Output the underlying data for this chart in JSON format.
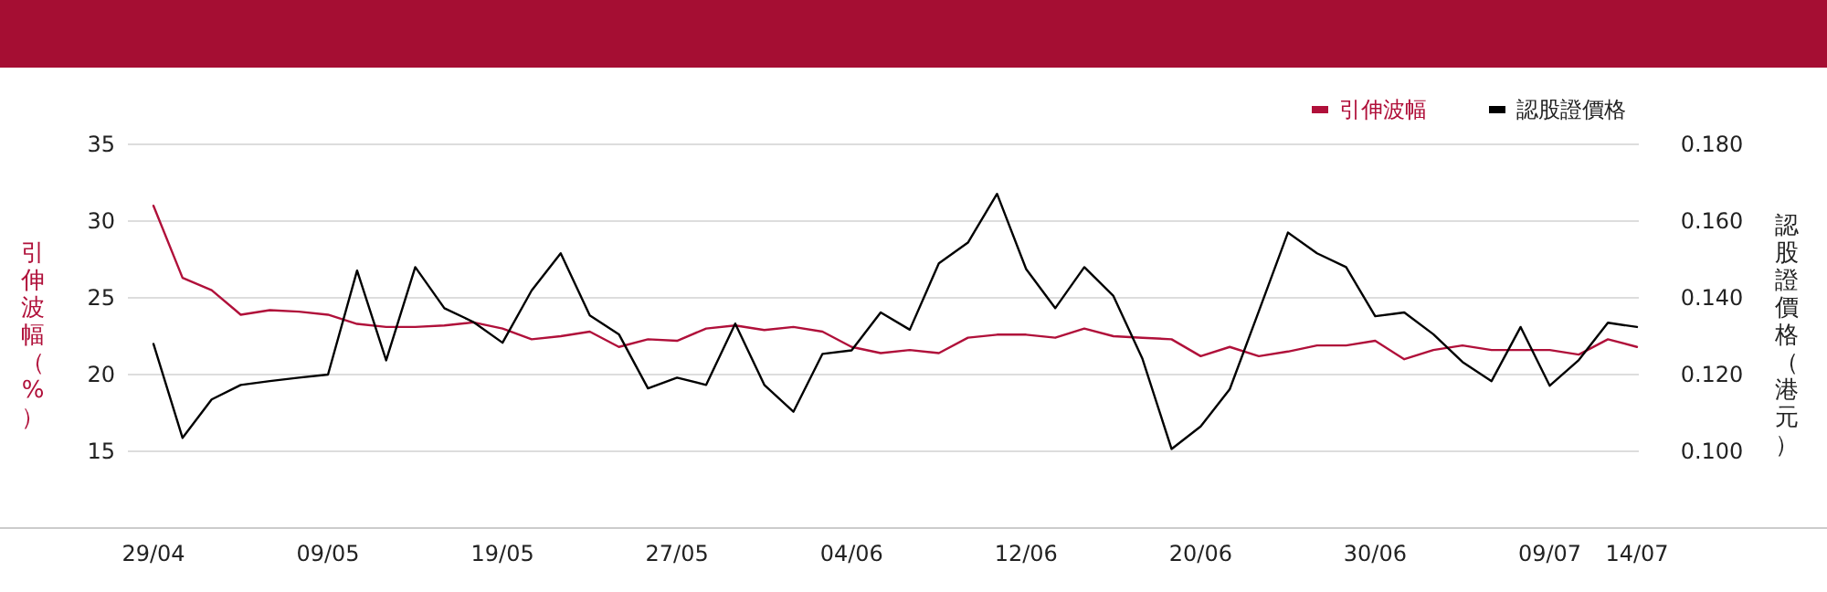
{
  "chart_data": {
    "type": "line",
    "ylabel": "引伸波幅（%）",
    "y2label": "認股證價格（港元）",
    "categories": [
      "29/04",
      null,
      null,
      null,
      null,
      null,
      "09/05",
      null,
      null,
      null,
      null,
      null,
      "19/05",
      null,
      null,
      null,
      null,
      null,
      "27/05",
      null,
      null,
      null,
      null,
      null,
      "04/06",
      null,
      null,
      null,
      null,
      null,
      "12/06",
      null,
      null,
      null,
      null,
      null,
      "20/06",
      null,
      null,
      null,
      null,
      null,
      "30/06",
      null,
      null,
      null,
      null,
      null,
      "09/07",
      null,
      null,
      "14/07"
    ],
    "series": [
      {
        "name": "引伸波幅",
        "color": "#b0103a",
        "values": [
          31.0,
          26.3,
          25.5,
          23.9,
          24.2,
          24.1,
          23.9,
          23.3,
          23.1,
          23.1,
          23.2,
          23.4,
          23.0,
          22.3,
          22.5,
          22.8,
          21.8,
          22.3,
          22.2,
          23.0,
          23.2,
          22.9,
          23.1,
          22.8,
          21.8,
          21.4,
          21.6,
          21.4,
          22.4,
          22.6,
          22.6,
          22.4,
          23.0,
          22.5,
          22.4,
          22.3,
          21.2,
          21.8,
          21.2,
          21.5,
          21.9,
          21.9,
          22.2,
          21.0,
          21.6,
          21.9,
          21.6,
          21.6,
          21.6,
          21.3,
          22.3,
          21.8
        ]
      },
      {
        "name": "認股證價格",
        "color": "#000000",
        "axis": "y2",
        "values": [
          0.128,
          0.1035,
          0.1135,
          0.1173,
          0.1183,
          0.1192,
          0.12,
          0.1471,
          0.1237,
          0.148,
          0.1373,
          0.1337,
          0.1283,
          0.1419,
          0.1516,
          0.1354,
          0.1305,
          0.1164,
          0.1192,
          0.1173,
          0.1333,
          0.1173,
          0.1103,
          0.1254,
          0.1263,
          0.1362,
          0.1317,
          0.149,
          0.1544,
          0.1671,
          0.1475,
          0.1373,
          0.148,
          0.1405,
          0.1241,
          0.1006,
          0.1065,
          0.1162,
          0.1365,
          0.157,
          0.1516,
          0.148,
          0.1352,
          0.1362,
          0.1305,
          0.1233,
          0.1183,
          0.1324,
          0.1171,
          0.1238,
          0.1335,
          0.1324
        ]
      }
    ],
    "ylim": [
      10,
      35
    ],
    "yticks": [
      15,
      20,
      25,
      30,
      35
    ],
    "y2lim": [
      0.08,
      0.18
    ],
    "y2ticks": [
      {
        "value": 0.1,
        "label": "0.100"
      },
      {
        "value": 0.12,
        "label": "0.120"
      },
      {
        "value": 0.14,
        "label": "0.140"
      },
      {
        "value": 0.16,
        "label": "0.160"
      },
      {
        "value": 0.18,
        "label": "0.180"
      }
    ],
    "grid": "y",
    "legend": "top right",
    "marker": "none",
    "line_style": "solid"
  }
}
